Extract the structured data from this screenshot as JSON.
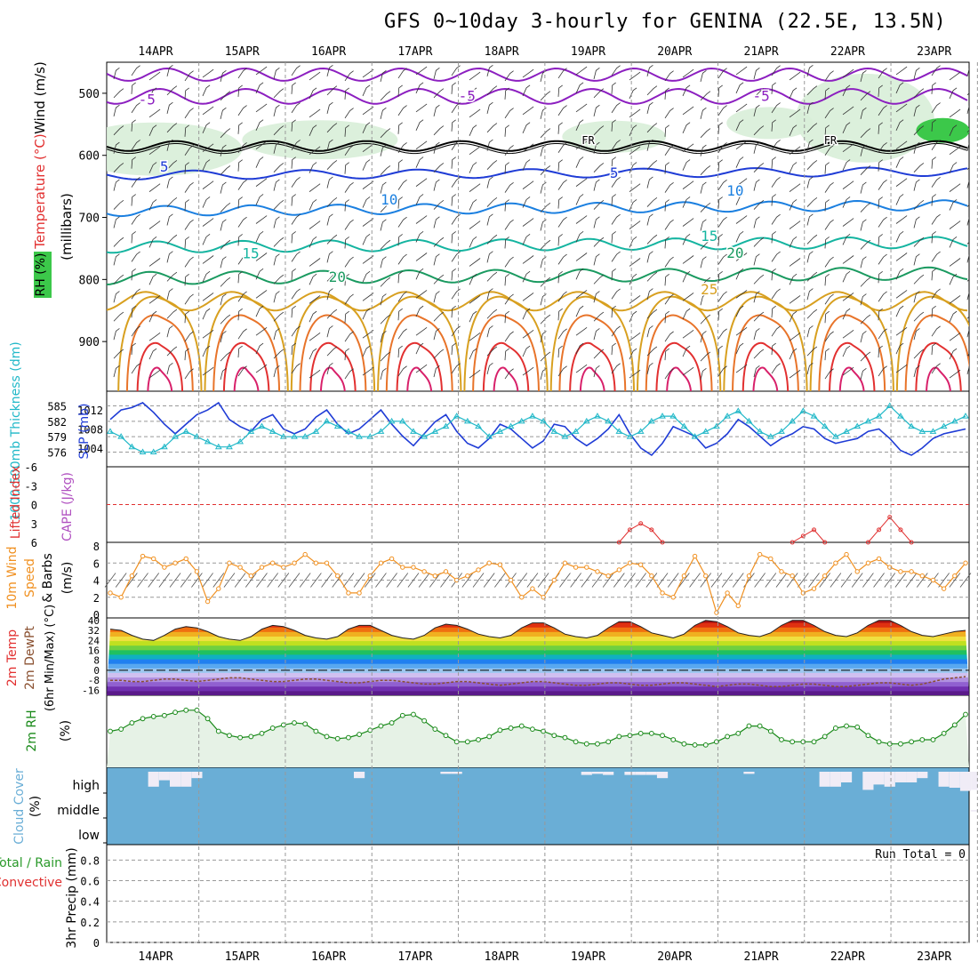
{
  "title": "GFS 0~10day 3-hourly for GENINA (22.5E, 13.5N)",
  "dates": [
    "14APR",
    "15APR",
    "16APR",
    "17APR",
    "18APR",
    "19APR",
    "20APR",
    "21APR",
    "22APR",
    "23APR"
  ],
  "run_total": "Run Total = 0",
  "colors": {
    "purple": "#8c1fc0",
    "blue_dark": "#1f3cd6",
    "blue_mid": "#1a7fe0",
    "teal": "#14b4a0",
    "green": "#1a9a60",
    "gold": "#d8a020",
    "orange": "#e8742a",
    "red": "#e23030",
    "slp": "#1f3cd6",
    "thick": "#20b8c8",
    "lifted": "#e03030",
    "cape": "#b050c0",
    "wind10": "#f09020",
    "rh2m": "#1a8a1a",
    "cloud": "#6aaed6",
    "precip_total": "#2a9a2a",
    "precip_conv": "#e03030"
  },
  "chart_data": [
    {
      "type": "contour",
      "panel": "upper-air",
      "labels": {
        "wind": "Wind (m/s)",
        "temperature": "Temperature (°C)",
        "rh": "RH (%)",
        "y_axis": "(millibars)"
      },
      "ylim": [
        450,
        980
      ],
      "y_ticks": [
        "500",
        "600",
        "700",
        "800",
        "900"
      ],
      "contour_labels": [
        {
          "text": "-5",
          "x_day": 0.4,
          "p": 518
        },
        {
          "text": "-5",
          "x_day": 4.1,
          "p": 512
        },
        {
          "text": "-5",
          "x_day": 7.5,
          "p": 512
        },
        {
          "text": "FR",
          "x_day": 5.5,
          "p": 582
        },
        {
          "text": "FR",
          "x_day": 8.3,
          "p": 582
        },
        {
          "text": "5",
          "x_day": 0.6,
          "p": 626
        },
        {
          "text": "5",
          "x_day": 5.8,
          "p": 636
        },
        {
          "text": "10",
          "x_day": 3.2,
          "p": 679
        },
        {
          "text": "10",
          "x_day": 7.2,
          "p": 665
        },
        {
          "text": "15",
          "x_day": 1.6,
          "p": 766
        },
        {
          "text": "15",
          "x_day": 6.9,
          "p": 738
        },
        {
          "text": "20",
          "x_day": 2.6,
          "p": 804
        },
        {
          "text": "20",
          "x_day": 7.2,
          "p": 765
        },
        {
          "text": "25",
          "x_day": 6.9,
          "p": 824
        }
      ]
    },
    {
      "type": "line",
      "panel": "slp-thickness",
      "labels": {
        "thickness": "1000-500mb Thickness (dm)",
        "slp": "SLP (mb)"
      },
      "thickness_ticks": [
        "585",
        "582",
        "579",
        "576"
      ],
      "slp_ticks": [
        "1012",
        "1008",
        "1004"
      ],
      "thickness_range": [
        574,
        587
      ],
      "series": [
        {
          "name": "SLP (mb)",
          "values": [
            1010,
            1012,
            1012.5,
            1013.5,
            1011.5,
            1009,
            1007,
            1009,
            1011,
            1012,
            1013.5,
            1010,
            1008.5,
            1007.5,
            1010,
            1011,
            1008,
            1007,
            1008,
            1010.5,
            1012,
            1009,
            1007,
            1008,
            1010,
            1012,
            1009,
            1006.5,
            1004.5,
            1007,
            1009.5,
            1011,
            1007.5,
            1005,
            1004,
            1006,
            1009,
            1008,
            1006,
            1004,
            1005.5,
            1009,
            1008.5,
            1006,
            1004.5,
            1006,
            1008,
            1011,
            1007,
            1004,
            1002.5,
            1005,
            1008.5,
            1007.5,
            1006.5,
            1004,
            1005,
            1007,
            1010,
            1008.5,
            1006.5,
            1004.5,
            1006,
            1007,
            1008.5,
            1008,
            1006,
            1005,
            1005.5,
            1006,
            1007.5,
            1008,
            1006,
            1003.5,
            1002.5,
            1004,
            1006,
            1007,
            1007.5,
            1008
          ]
        },
        {
          "name": "Thickness (dm)",
          "values": [
            580,
            579,
            577,
            576,
            576,
            577,
            579,
            580,
            579,
            578,
            577,
            577,
            578,
            580,
            581,
            580,
            579,
            579,
            579,
            580,
            582,
            581,
            580,
            579,
            579,
            580,
            582,
            582,
            580,
            579,
            580,
            581,
            583,
            582,
            581,
            579,
            580,
            581,
            582,
            583,
            582,
            580,
            579,
            580,
            582,
            583,
            582,
            580,
            579,
            580,
            582,
            583,
            583,
            581,
            579,
            580,
            581,
            583,
            584,
            582,
            580,
            579,
            580,
            582,
            584,
            583,
            581,
            579,
            580,
            581,
            582,
            583,
            585,
            583,
            581,
            580,
            580,
            581,
            582,
            583
          ]
        }
      ]
    },
    {
      "type": "line",
      "panel": "instability",
      "labels": {
        "lifted": "Lifted Index",
        "cape": "CAPE (J/kg)"
      },
      "y_ticks": [
        "-6",
        "-3",
        "0",
        "3",
        "6"
      ],
      "ylim": [
        -6,
        6
      ],
      "series": [
        {
          "name": "Lifted Index",
          "segments": [
            {
              "start": 47,
              "values": [
                6,
                4,
                3,
                4,
                6
              ]
            },
            {
              "start": 63,
              "values": [
                6,
                5,
                4,
                6
              ]
            },
            {
              "start": 70,
              "values": [
                6,
                4,
                2,
                4,
                6
              ]
            }
          ]
        }
      ]
    },
    {
      "type": "line",
      "panel": "wind10m",
      "labels": {
        "wind": "10m Wind",
        "speed": "Speed",
        "barbs": "& Barbs",
        "units": "(m/s)"
      },
      "y_ticks": [
        "0",
        "2",
        "4",
        "6",
        "8"
      ],
      "ylim": [
        0,
        8
      ],
      "series": [
        {
          "name": "Speed (m/s)",
          "values": [
            2.5,
            2,
            4.5,
            6.8,
            6.5,
            5.5,
            6,
            6.5,
            5,
            1.5,
            3,
            6,
            5.5,
            4.5,
            5.5,
            6,
            5.5,
            6,
            7,
            6,
            6,
            4.5,
            2.5,
            2.5,
            4.5,
            6,
            6.5,
            5.5,
            5.5,
            5,
            4.5,
            5,
            4,
            4.5,
            5.2,
            6,
            5.8,
            4,
            2,
            3,
            2,
            4,
            6,
            5.5,
            5.5,
            5,
            4.5,
            5.2,
            6,
            5.8,
            4.5,
            2.5,
            2,
            4.5,
            6.8,
            4.5,
            0.2,
            2.5,
            1,
            4.5,
            7,
            6.5,
            5,
            4.5,
            2.5,
            3,
            4.5,
            6,
            7,
            5,
            6,
            6.5,
            5.5,
            5,
            5,
            4.5,
            4,
            3,
            4.5,
            6
          ]
        }
      ]
    },
    {
      "type": "area",
      "panel": "temperature",
      "labels": {
        "temp": "2m Temp",
        "dewpt": "2m DewPt",
        "minmax": "(6hr Min/Max) (°C)"
      },
      "y_ticks": [
        "40",
        "32",
        "24",
        "16",
        "8",
        "0",
        "-8",
        "-16"
      ],
      "ylim": [
        -20,
        42
      ],
      "series": [
        {
          "name": "2m Temp",
          "values": [
            33,
            32,
            28,
            25,
            24,
            28,
            33,
            35,
            34,
            31,
            27,
            25,
            24,
            27,
            33,
            36,
            35,
            32,
            28,
            26,
            25,
            27,
            33,
            36,
            36,
            32,
            28,
            26,
            25,
            28,
            34,
            37,
            36,
            33,
            29,
            27,
            26,
            28,
            34,
            38,
            38,
            34,
            29,
            27,
            26,
            28,
            34,
            39,
            39,
            35,
            30,
            28,
            26,
            29,
            36,
            40,
            39,
            35,
            30,
            28,
            27,
            30,
            36,
            40,
            40,
            36,
            31,
            28,
            27,
            30,
            36,
            40,
            40,
            36,
            31,
            28,
            27,
            29,
            31,
            32
          ]
        },
        {
          "name": "2m DewPt",
          "values": [
            -8,
            -8,
            -9,
            -9,
            -8,
            -7,
            -7,
            -8,
            -9,
            -8,
            -7,
            -6,
            -6,
            -7,
            -8,
            -9,
            -9,
            -8,
            -7,
            -7,
            -8,
            -9,
            -10,
            -10,
            -9,
            -8,
            -8,
            -9,
            -10,
            -11,
            -11,
            -10,
            -9,
            -9,
            -10,
            -11,
            -12,
            -11,
            -10,
            -9,
            -9,
            -10,
            -11,
            -12,
            -12,
            -11,
            -10,
            -10,
            -11,
            -12,
            -12,
            -11,
            -10,
            -10,
            -11,
            -12,
            -13,
            -12,
            -11,
            -11,
            -12,
            -13,
            -13,
            -12,
            -11,
            -11,
            -12,
            -13,
            -13,
            -12,
            -11,
            -10,
            -10,
            -11,
            -12,
            -11,
            -9,
            -7,
            -6,
            -5
          ]
        }
      ]
    },
    {
      "type": "area",
      "panel": "rh2m",
      "labels": {
        "name": "2m RH",
        "units": "(%)"
      },
      "series": [
        {
          "name": "2m RH",
          "values": [
            30,
            32,
            38,
            42,
            44,
            45,
            48,
            50,
            50,
            42,
            30,
            26,
            24,
            25,
            28,
            33,
            36,
            38,
            37,
            30,
            25,
            23,
            24,
            27,
            31,
            35,
            38,
            45,
            46,
            40,
            32,
            26,
            20,
            20,
            22,
            25,
            31,
            33,
            35,
            32,
            30,
            26,
            24,
            20,
            18,
            18,
            20,
            25,
            26,
            28,
            28,
            26,
            22,
            18,
            17,
            17,
            20,
            25,
            28,
            35,
            35,
            30,
            22,
            20,
            20,
            20,
            25,
            33,
            35,
            34,
            26,
            20,
            18,
            18,
            20,
            22,
            22,
            28,
            36,
            46
          ]
        }
      ]
    },
    {
      "type": "heatmap",
      "panel": "cloud",
      "labels": {
        "name": "Cloud Cover",
        "units": "(%)",
        "levels": [
          "high",
          "middle",
          "low"
        ]
      },
      "series": [
        {
          "name": "high",
          "values": [
            0,
            0,
            0,
            0,
            70,
            40,
            70,
            70,
            30,
            0,
            0,
            0,
            0,
            0,
            0,
            0,
            0,
            0,
            0,
            0,
            0,
            0,
            0,
            30,
            0,
            0,
            0,
            0,
            0,
            0,
            0,
            10,
            10,
            0,
            0,
            0,
            0,
            0,
            0,
            0,
            0,
            0,
            0,
            0,
            15,
            10,
            15,
            0,
            15,
            15,
            15,
            30,
            0,
            0,
            0,
            0,
            0,
            0,
            0,
            10,
            0,
            0,
            0,
            0,
            0,
            0,
            70,
            70,
            50,
            0,
            85,
            60,
            70,
            50,
            50,
            30,
            0,
            70,
            75,
            90,
            85,
            40,
            40,
            10
          ]
        },
        {
          "name": "middle",
          "values": [
            0,
            0,
            0,
            0,
            0,
            0,
            0,
            0,
            0,
            0,
            0,
            0,
            0,
            0,
            0,
            0,
            0,
            0,
            0,
            0,
            0,
            0,
            0,
            0,
            0,
            0,
            0,
            0,
            0,
            0,
            0,
            0,
            0,
            0,
            0,
            0,
            0,
            0,
            0,
            0,
            0,
            0,
            0,
            0,
            0,
            0,
            0,
            0,
            0,
            0,
            0,
            0,
            0,
            0,
            0,
            0,
            0,
            0,
            0,
            0,
            0,
            0,
            0,
            0,
            0,
            0,
            0,
            0,
            0,
            0,
            0,
            0,
            0,
            0,
            0,
            0,
            0,
            0,
            0,
            0,
            15,
            0,
            0,
            60
          ]
        }
      ]
    },
    {
      "type": "bar",
      "panel": "precip",
      "labels": {
        "name": "3hr Precip (mm)",
        "legend": "Total / Rain",
        "convective": "Convective"
      },
      "y_ticks": [
        "0",
        "0.2",
        "0.4",
        "0.6",
        "0.8"
      ],
      "ylim": [
        0,
        0.95
      ],
      "series": [
        {
          "name": "Total / Rain",
          "values": [
            0,
            0,
            0,
            0,
            0,
            0,
            0,
            0,
            0,
            0,
            0,
            0,
            0,
            0,
            0,
            0,
            0,
            0,
            0,
            0,
            0,
            0,
            0,
            0,
            0,
            0,
            0,
            0,
            0,
            0,
            0,
            0,
            0,
            0,
            0,
            0,
            0,
            0,
            0,
            0,
            0,
            0,
            0,
            0,
            0,
            0,
            0,
            0,
            0,
            0,
            0,
            0,
            0,
            0,
            0,
            0,
            0,
            0,
            0,
            0,
            0,
            0,
            0,
            0,
            0,
            0,
            0,
            0,
            0,
            0,
            0,
            0,
            0,
            0,
            0,
            0,
            0,
            0,
            0,
            0
          ]
        }
      ]
    }
  ]
}
